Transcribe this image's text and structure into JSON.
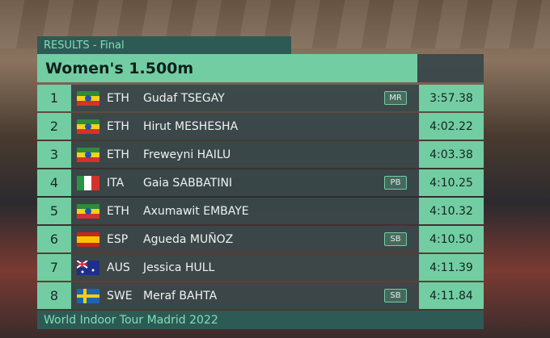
{
  "header": {
    "label": "RESULTS - Final",
    "title": "Women's 1.500m"
  },
  "rows": [
    {
      "rank": 1,
      "country": "ETH",
      "name": "Gudaf TSEGAY",
      "badge": "MR",
      "time": "3:57.38"
    },
    {
      "rank": 2,
      "country": "ETH",
      "name": "Hirut MESHESHA",
      "time": "4:02.22"
    },
    {
      "rank": 3,
      "country": "ETH",
      "name": "Freweyni HAILU",
      "time": "4:03.38"
    },
    {
      "rank": 4,
      "country": "ITA",
      "name": "Gaia SABBATINI",
      "badge": "PB",
      "time": "4:10.25"
    },
    {
      "rank": 5,
      "country": "ETH",
      "name": "Axumawit EMBAYE",
      "time": "4:10.32"
    },
    {
      "rank": 6,
      "country": "ESP",
      "name": "Agueda MUÑOZ",
      "badge": "SB",
      "time": "4:10.50"
    },
    {
      "rank": 7,
      "country": "AUS",
      "name": "Jessica HULL",
      "time": "4:11.39"
    },
    {
      "rank": 8,
      "country": "SWE",
      "name": "Meraf BAHTA",
      "badge": "SB",
      "time": "4:11.84"
    }
  ],
  "footer": "World Indoor Tour Madrid 2022"
}
